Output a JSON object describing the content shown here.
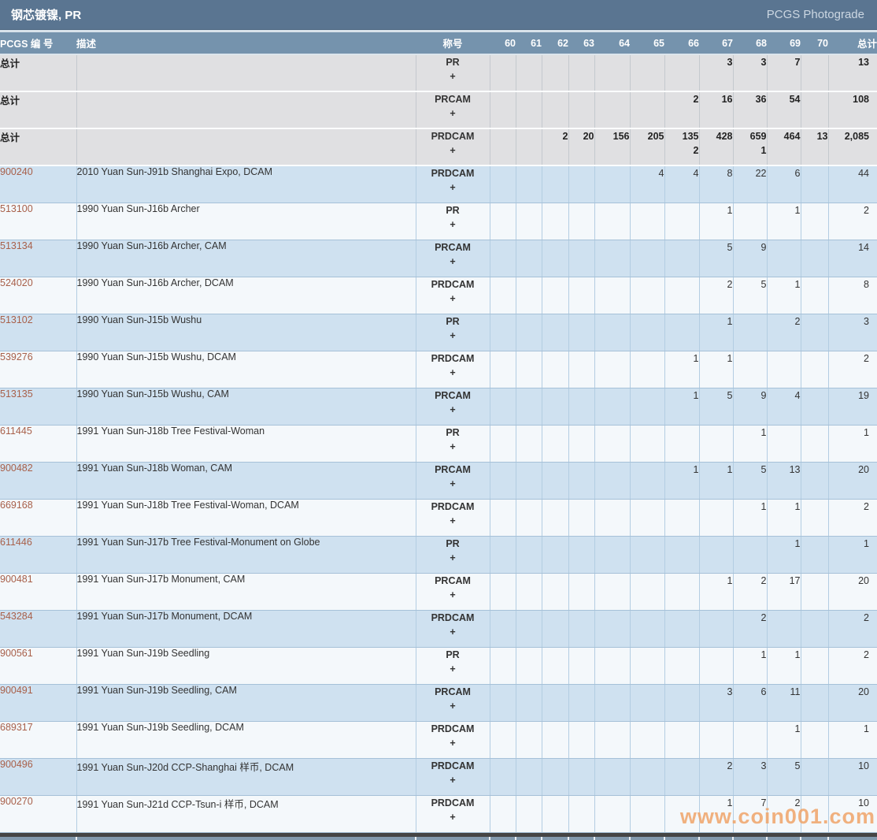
{
  "page": {
    "title": "钢芯镀镍, PR",
    "subtitle": "PCGS Photograde",
    "watermark": "www.coin001.com"
  },
  "colors": {
    "title_bar": "#5a7591",
    "header_bar": "#7593ad",
    "row_gray": "#e0e0e2",
    "row_blue": "#cfe1f0",
    "row_white": "#f4f8fb",
    "link": "#a8604a",
    "watermark": "#f0a469"
  },
  "table": {
    "headers": [
      "PCGS 编 号",
      "描述",
      "称号",
      "60",
      "61",
      "62",
      "63",
      "64",
      "65",
      "66",
      "67",
      "68",
      "69",
      "70",
      "总计"
    ],
    "summary_rows": [
      {
        "id": "总计",
        "desc": "",
        "designation": "PR",
        "plus": "+",
        "values": [
          "",
          "",
          "",
          "",
          "",
          "",
          "",
          "3",
          "3",
          "7",
          "",
          "13"
        ]
      },
      {
        "id": "总计",
        "desc": "",
        "designation": "PRCAM",
        "plus": "+",
        "values": [
          "",
          "",
          "",
          "",
          "",
          "",
          "2",
          "16",
          "36",
          "54",
          "",
          "108"
        ]
      },
      {
        "id": "总计",
        "desc": "",
        "designation": "PRDCAM",
        "plus": "+",
        "values": [
          "",
          "",
          "2",
          "20",
          "156",
          "205",
          "135",
          "428",
          "659",
          "464",
          "13",
          "2,085"
        ],
        "values2": [
          "",
          "",
          "",
          "",
          "",
          "",
          "2",
          "",
          "1",
          "",
          "",
          ""
        ]
      }
    ],
    "item_rows": [
      {
        "id": "900240",
        "desc": "2010 Yuan Sun-J91b Shanghai Expo, DCAM",
        "designation": "PRDCAM",
        "plus": "+",
        "values": [
          "",
          "",
          "",
          "",
          "",
          "4",
          "4",
          "8",
          "22",
          "6",
          "",
          "44"
        ]
      },
      {
        "id": "513100",
        "desc": "1990 Yuan Sun-J16b Archer",
        "designation": "PR",
        "plus": "+",
        "values": [
          "",
          "",
          "",
          "",
          "",
          "",
          "",
          "1",
          "",
          "1",
          "",
          "2"
        ]
      },
      {
        "id": "513134",
        "desc": "1990 Yuan Sun-J16b Archer, CAM",
        "designation": "PRCAM",
        "plus": "+",
        "values": [
          "",
          "",
          "",
          "",
          "",
          "",
          "",
          "5",
          "9",
          "",
          "",
          "14"
        ]
      },
      {
        "id": "524020",
        "desc": "1990 Yuan Sun-J16b Archer, DCAM",
        "designation": "PRDCAM",
        "plus": "+",
        "values": [
          "",
          "",
          "",
          "",
          "",
          "",
          "",
          "2",
          "5",
          "1",
          "",
          "8"
        ]
      },
      {
        "id": "513102",
        "desc": "1990 Yuan Sun-J15b Wushu",
        "designation": "PR",
        "plus": "+",
        "values": [
          "",
          "",
          "",
          "",
          "",
          "",
          "",
          "1",
          "",
          "2",
          "",
          "3"
        ]
      },
      {
        "id": "539276",
        "desc": "1990 Yuan Sun-J15b Wushu, DCAM",
        "designation": "PRDCAM",
        "plus": "+",
        "values": [
          "",
          "",
          "",
          "",
          "",
          "",
          "1",
          "1",
          "",
          "",
          "",
          "2"
        ]
      },
      {
        "id": "513135",
        "desc": "1990 Yuan Sun-J15b Wushu, CAM",
        "designation": "PRCAM",
        "plus": "+",
        "values": [
          "",
          "",
          "",
          "",
          "",
          "",
          "1",
          "5",
          "9",
          "4",
          "",
          "19"
        ]
      },
      {
        "id": "611445",
        "desc": "1991 Yuan Sun-J18b Tree Festival-Woman",
        "designation": "PR",
        "plus": "+",
        "values": [
          "",
          "",
          "",
          "",
          "",
          "",
          "",
          "",
          "1",
          "",
          "",
          "1"
        ]
      },
      {
        "id": "900482",
        "desc": "1991 Yuan Sun-J18b Woman, CAM",
        "designation": "PRCAM",
        "plus": "+",
        "values": [
          "",
          "",
          "",
          "",
          "",
          "",
          "1",
          "1",
          "5",
          "13",
          "",
          "20"
        ]
      },
      {
        "id": "669168",
        "desc": "1991 Yuan Sun-J18b Tree Festival-Woman, DCAM",
        "designation": "PRDCAM",
        "plus": "+",
        "values": [
          "",
          "",
          "",
          "",
          "",
          "",
          "",
          "",
          "1",
          "1",
          "",
          "2"
        ]
      },
      {
        "id": "611446",
        "desc": "1991 Yuan Sun-J17b Tree Festival-Monument on Globe",
        "designation": "PR",
        "plus": "+",
        "values": [
          "",
          "",
          "",
          "",
          "",
          "",
          "",
          "",
          "",
          "1",
          "",
          "1"
        ]
      },
      {
        "id": "900481",
        "desc": "1991 Yuan Sun-J17b Monument, CAM",
        "designation": "PRCAM",
        "plus": "+",
        "values": [
          "",
          "",
          "",
          "",
          "",
          "",
          "",
          "1",
          "2",
          "17",
          "",
          "20"
        ]
      },
      {
        "id": "543284",
        "desc": "1991 Yuan Sun-J17b Monument, DCAM",
        "designation": "PRDCAM",
        "plus": "+",
        "values": [
          "",
          "",
          "",
          "",
          "",
          "",
          "",
          "",
          "2",
          "",
          "",
          "2"
        ]
      },
      {
        "id": "900561",
        "desc": "1991 Yuan Sun-J19b Seedling",
        "designation": "PR",
        "plus": "+",
        "values": [
          "",
          "",
          "",
          "",
          "",
          "",
          "",
          "",
          "1",
          "1",
          "",
          "2"
        ]
      },
      {
        "id": "900491",
        "desc": "1991 Yuan Sun-J19b Seedling, CAM",
        "designation": "PRCAM",
        "plus": "+",
        "values": [
          "",
          "",
          "",
          "",
          "",
          "",
          "",
          "3",
          "6",
          "11",
          "",
          "20"
        ]
      },
      {
        "id": "689317",
        "desc": "1991 Yuan Sun-J19b Seedling, DCAM",
        "designation": "PRDCAM",
        "plus": "+",
        "values": [
          "",
          "",
          "",
          "",
          "",
          "",
          "",
          "",
          "",
          "1",
          "",
          "1"
        ]
      },
      {
        "id": "900496",
        "desc": "1991 Yuan Sun-J20d CCP-Shanghai 样币, DCAM",
        "designation": "PRDCAM",
        "plus": "+",
        "values": [
          "",
          "",
          "",
          "",
          "",
          "",
          "",
          "2",
          "3",
          "5",
          "",
          "10"
        ]
      },
      {
        "id": "900270",
        "desc": "1991 Yuan Sun-J21d CCP-Tsun-i 样币, DCAM",
        "designation": "PRDCAM",
        "plus": "+",
        "values": [
          "",
          "",
          "",
          "",
          "",
          "",
          "",
          "1",
          "7",
          "2",
          "",
          "10"
        ]
      }
    ]
  }
}
